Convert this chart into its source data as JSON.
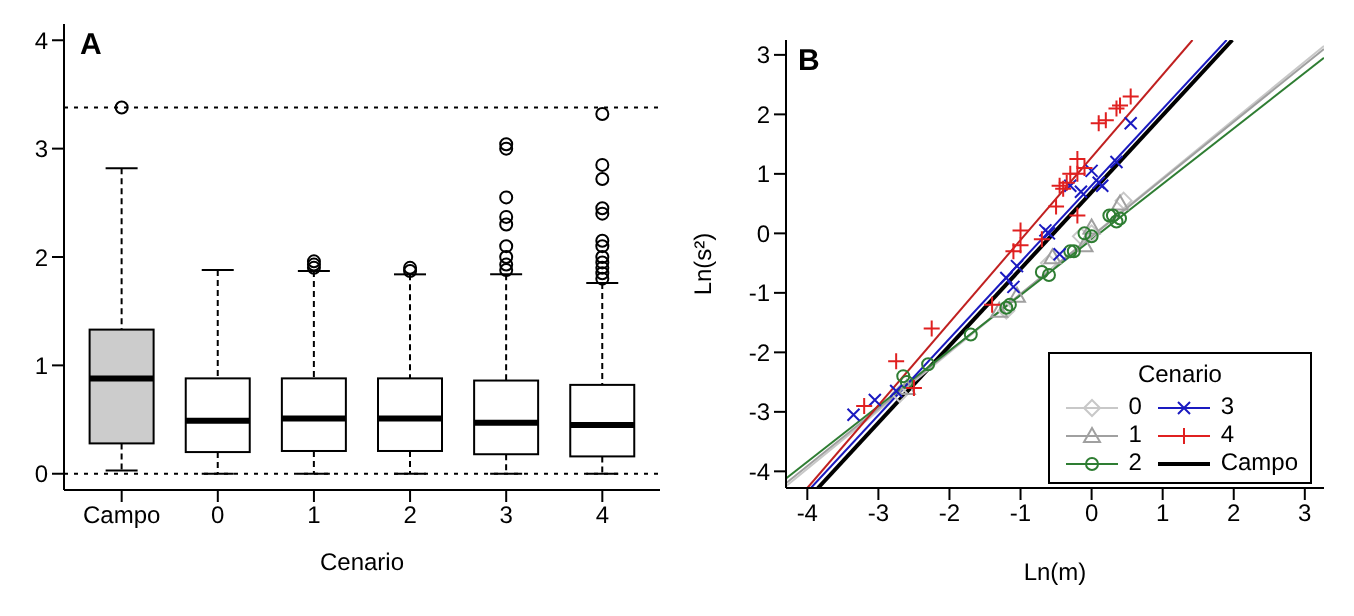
{
  "chart_data": [
    {
      "type": "box",
      "title": "A",
      "xlabel": "Cenario",
      "categories": [
        "Campo",
        "0",
        "1",
        "2",
        "3",
        "4"
      ],
      "boxes": [
        {
          "low": 0.03,
          "q1": 0.28,
          "median": 0.88,
          "q3": 1.33,
          "high": 2.82,
          "outliers": [
            3.38
          ]
        },
        {
          "low": 0,
          "q1": 0.2,
          "median": 0.49,
          "q3": 0.88,
          "high": 1.88
        },
        {
          "low": 0,
          "q1": 0.21,
          "median": 0.51,
          "q3": 0.88,
          "high": 1.87,
          "outliers": [
            1.9,
            1.93,
            1.96
          ]
        },
        {
          "low": 0,
          "q1": 0.21,
          "median": 0.51,
          "q3": 0.88,
          "high": 1.84,
          "outliers": [
            1.87,
            1.9
          ]
        },
        {
          "low": 0,
          "q1": 0.18,
          "median": 0.47,
          "q3": 0.86,
          "high": 1.84,
          "outliers": [
            1.88,
            1.93,
            2.0,
            2.1,
            2.3,
            2.37,
            2.55,
            3.0,
            3.04
          ]
        },
        {
          "low": 0,
          "q1": 0.16,
          "median": 0.45,
          "q3": 0.82,
          "high": 1.76,
          "outliers": [
            1.8,
            1.85,
            1.9,
            1.95,
            2.0,
            2.1,
            2.15,
            2.4,
            2.45,
            2.72,
            2.85,
            3.32
          ]
        }
      ],
      "colors": [
        "#cccccc",
        "#ffffff",
        "#ffffff",
        "#ffffff",
        "#ffffff",
        "#ffffff"
      ],
      "ylim": [
        -0.15,
        4.15
      ],
      "yticks": [
        0,
        1,
        2,
        3,
        4
      ],
      "ref_lines": [
        {
          "axis": "y",
          "value": 0,
          "line_style": "dotted"
        },
        {
          "axis": "y",
          "value": 3.38,
          "line_style": "dotted"
        }
      ]
    },
    {
      "type": "scatter",
      "title": "B",
      "xlabel": "Ln(m)",
      "ylabel": "Ln(s²)",
      "legend_title": "Cenario",
      "legend": "bottom right",
      "xlim": [
        -4.3,
        3.27
      ],
      "xticks": [
        -4,
        -3,
        -2,
        -1,
        0,
        1,
        2,
        3
      ],
      "ylim": [
        -4.28,
        3.25
      ],
      "yticks": [
        -4,
        -3,
        -2,
        -1,
        0,
        1,
        2,
        3
      ],
      "series": [
        {
          "name": "0",
          "type": "scatter",
          "marker": "diamond",
          "color": "#c8c8c8",
          "x": [
            -2.7,
            -1.2,
            -0.6,
            -0.15,
            0.0,
            0.45
          ],
          "values": [
            -2.7,
            -1.3,
            -0.5,
            -0.05,
            0.0,
            0.55
          ]
        },
        {
          "name": "1",
          "type": "scatter",
          "marker": "triangle",
          "color": "#a0a0a0",
          "x": [
            -2.6,
            -1.3,
            -1.05,
            -0.55,
            -0.1,
            0.0,
            0.4
          ],
          "values": [
            -2.6,
            -1.3,
            -1.05,
            -0.4,
            -0.2,
            0.1,
            0.5
          ]
        },
        {
          "name": "2",
          "type": "scatter",
          "marker": "circle",
          "color": "#2e7d32",
          "x": [
            -2.65,
            -2.6,
            -2.3,
            -1.7,
            -1.2,
            -1.15,
            -0.7,
            -0.6,
            -0.3,
            -0.25,
            -0.1,
            0.0,
            0.25,
            0.3,
            0.35,
            0.4
          ],
          "values": [
            -2.4,
            -2.5,
            -2.2,
            -1.7,
            -1.25,
            -1.2,
            -0.65,
            -0.7,
            -0.3,
            -0.3,
            0.0,
            -0.05,
            0.3,
            0.3,
            0.2,
            0.25
          ]
        },
        {
          "name": "3",
          "type": "scatter",
          "marker": "x",
          "color": "#1a1ac0",
          "x": [
            -3.35,
            -3.05,
            -2.75,
            -1.2,
            -1.1,
            -1.05,
            -0.65,
            -0.6,
            -0.45,
            -0.3,
            -0.15,
            0.0,
            0.1,
            0.15,
            0.35,
            0.55
          ],
          "values": [
            -3.05,
            -2.8,
            -2.65,
            -0.75,
            -0.9,
            -0.55,
            0.05,
            0.0,
            -0.35,
            0.8,
            0.7,
            1.05,
            0.85,
            0.8,
            1.2,
            1.85
          ]
        },
        {
          "name": "4",
          "type": "scatter",
          "marker": "cross",
          "color": "#e02020",
          "x": [
            -3.2,
            -2.75,
            -2.5,
            -2.25,
            -1.4,
            -1.1,
            -1.0,
            -1.0,
            -0.7,
            -0.5,
            -0.45,
            -0.4,
            -0.35,
            -0.3,
            -0.2,
            -0.2,
            -0.2,
            -0.1,
            0.1,
            0.2,
            0.35,
            0.4,
            0.55
          ],
          "values": [
            -2.9,
            -2.15,
            -2.6,
            -1.6,
            -1.2,
            -0.3,
            0.05,
            -0.2,
            -0.1,
            0.45,
            0.8,
            0.75,
            0.85,
            1.0,
            1.0,
            1.25,
            0.3,
            1.1,
            1.85,
            1.9,
            2.1,
            2.15,
            2.3
          ]
        },
        {
          "name": "Campo",
          "type": "line",
          "color": "#000000",
          "x": [
            -3.85,
            1.98
          ],
          "values": [
            -4.28,
            3.25
          ]
        },
        {
          "type": "line",
          "color": "#c8c8c8",
          "x": [
            -4.3,
            3.27
          ],
          "values": [
            -4.25,
            3.15
          ]
        },
        {
          "type": "line",
          "color": "#a0a0a0",
          "x": [
            -4.3,
            3.27
          ],
          "values": [
            -4.2,
            3.1
          ]
        },
        {
          "type": "line",
          "color": "#2e7d32",
          "x": [
            -4.3,
            3.27
          ],
          "values": [
            -4.12,
            2.95
          ]
        },
        {
          "type": "line",
          "color": "#1a1ac0",
          "x": [
            -3.95,
            1.9
          ],
          "values": [
            -4.28,
            3.25
          ]
        },
        {
          "type": "line",
          "color": "#c02020",
          "x": [
            -4.0,
            1.42
          ],
          "values": [
            -4.28,
            3.25
          ]
        }
      ]
    }
  ]
}
